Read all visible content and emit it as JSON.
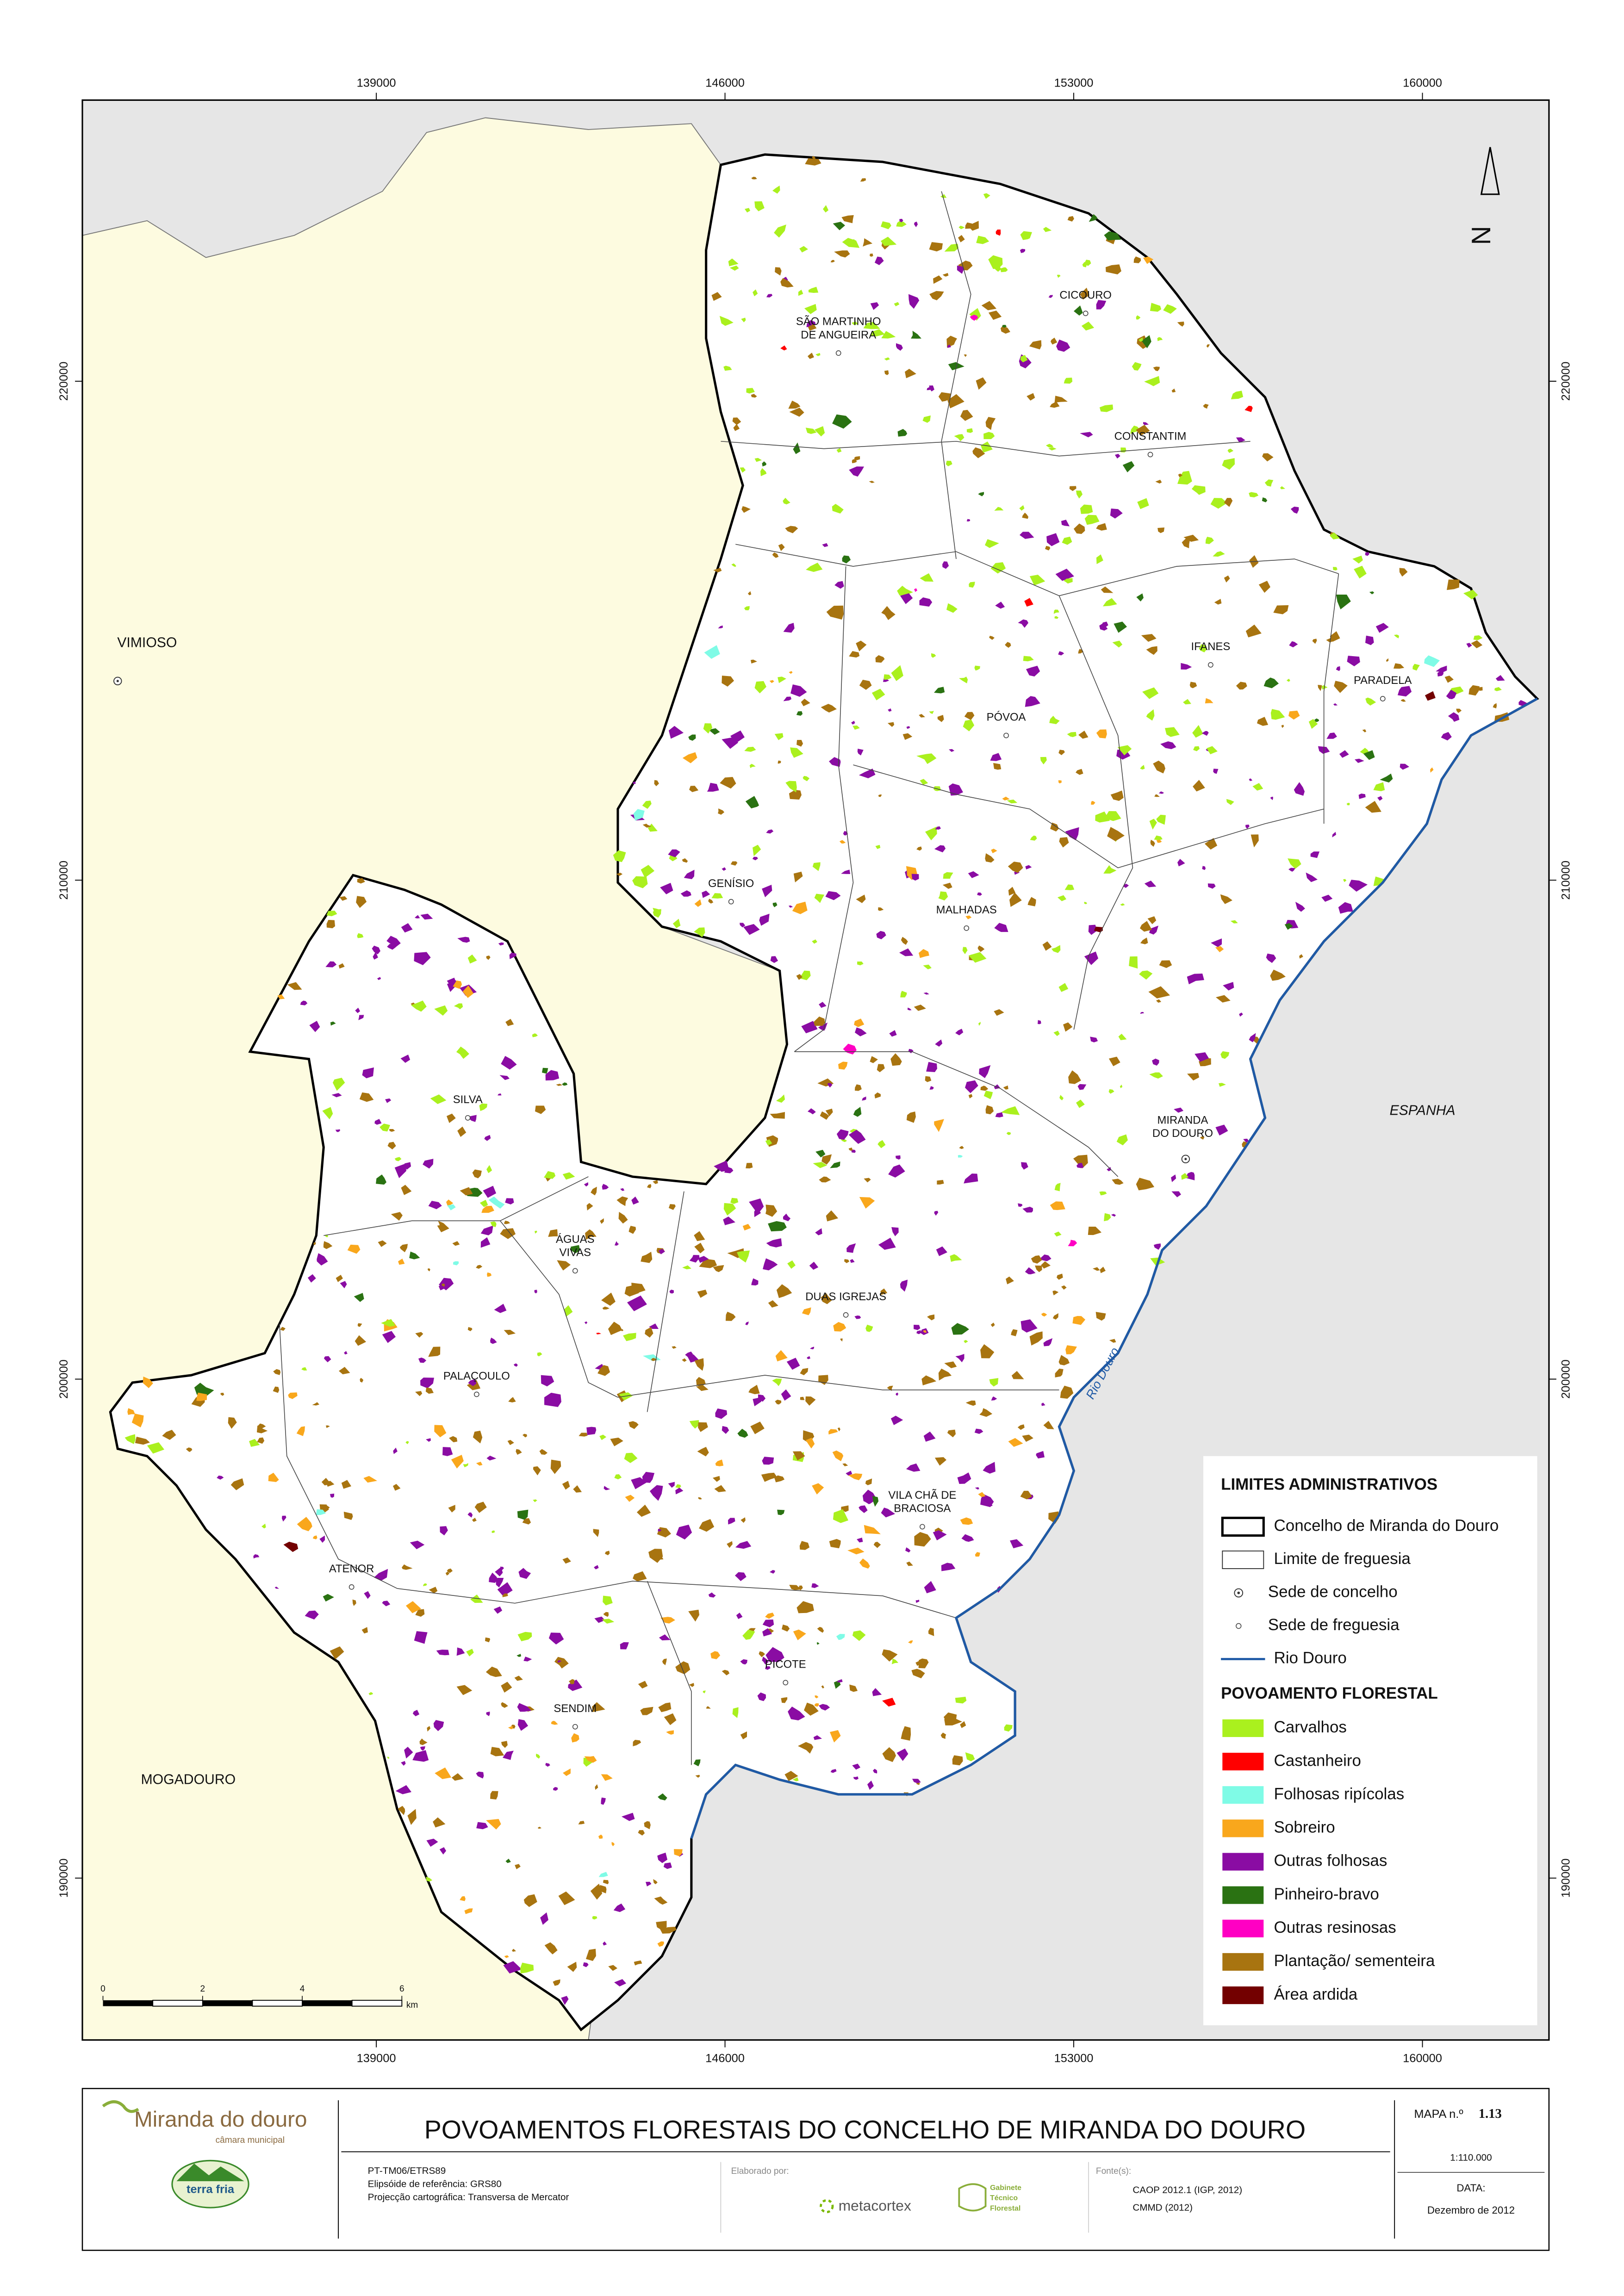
{
  "map": {
    "xlim": [
      133100,
      162540
    ],
    "ylim": [
      186755,
      225634
    ],
    "xticks": [
      139000,
      146000,
      153000,
      160000
    ],
    "yticks": [
      220000,
      210000,
      200000,
      190000
    ],
    "north": "N",
    "river": "Rio Douro",
    "places": [
      {
        "lines": [
          "VIMIOSO"
        ]
      },
      {
        "lines": [
          "MOGADOURO"
        ]
      },
      {
        "lines": [
          "ESPANHA"
        ]
      },
      {
        "lines": [
          "SÃO MARTINHO",
          "DE ANGUEIRA"
        ]
      },
      {
        "lines": [
          "CICOURO"
        ]
      },
      {
        "lines": [
          "CONSTANTIM"
        ]
      },
      {
        "lines": [
          "IFANES"
        ]
      },
      {
        "lines": [
          "PARADELA"
        ]
      },
      {
        "lines": [
          "PÓVOA"
        ]
      },
      {
        "lines": [
          "GENÍSIO"
        ]
      },
      {
        "lines": [
          "MALHADAS"
        ]
      },
      {
        "lines": [
          "SILVA"
        ]
      },
      {
        "lines": [
          "MIRANDA",
          "DO DOURO"
        ]
      },
      {
        "lines": [
          "ÁGUAS",
          "VIVAS"
        ]
      },
      {
        "lines": [
          "DUAS IGREJAS"
        ]
      },
      {
        "lines": [
          "PALAÇOULO"
        ]
      },
      {
        "lines": [
          "VILA CHÃ DE",
          "BRACIOSA"
        ]
      },
      {
        "lines": [
          "ATENOR"
        ]
      },
      {
        "lines": [
          "PICOTE"
        ]
      },
      {
        "lines": [
          "SENDIM"
        ]
      }
    ],
    "scale_bar": {
      "ticks": [
        0,
        2,
        4,
        6
      ],
      "unit": "km"
    }
  },
  "legend": {
    "admin_title": "LIMITES ADMINISTRATIVOS",
    "admin": [
      "Concelho de Miranda do Douro",
      "Limite de freguesia",
      "Sede de concelho",
      "Sede de freguesia",
      "Rio Douro"
    ],
    "forest_title": "POVOAMENTO FLORESTAL",
    "forest": [
      {
        "label": "Carvalhos",
        "color": "#aaf01e"
      },
      {
        "label": "Castanheiro",
        "color": "#ff0000"
      },
      {
        "label": "Folhosas ripícolas",
        "color": "#7ffbe6"
      },
      {
        "label": "Sobreiro",
        "color": "#f9a71c"
      },
      {
        "label": "Outras folhosas",
        "color": "#8a0ca3"
      },
      {
        "label": "Pinheiro-bravo",
        "color": "#2a7212"
      },
      {
        "label": "Outras resinosas",
        "color": "#ff00c3"
      },
      {
        "label": "Plantação/ sementeira",
        "color": "#a87410"
      },
      {
        "label": "Área ardida",
        "color": "#730000"
      }
    ]
  },
  "footer": {
    "title": "POVOAMENTOS FLORESTAIS DO CONCELHO DE MIRANDA DO DOURO",
    "map_label": "MAPA n.º",
    "map_number": "1.13",
    "scale": "1:110.000",
    "datum": "PT-TM06/ETRS89",
    "ellipsoid": "Elipsóide de referência: GRS80",
    "projection": "Projecção cartográfica: Transversa de Mercator",
    "made_by": "Elaborado por:",
    "company": "metacortex",
    "office": [
      "Gabinete",
      "Técnico",
      "Florestal"
    ],
    "sources_label": "Fonte(s):",
    "sources": [
      "CAOP 2012.1 (IGP, 2012)",
      "CMMD (2012)"
    ],
    "date_label": "DATA:",
    "date": "Dezembro de 2012",
    "logo_main": "Miranda do douro",
    "logo_sub": "câmara municipal",
    "logo2": "terra fria"
  }
}
